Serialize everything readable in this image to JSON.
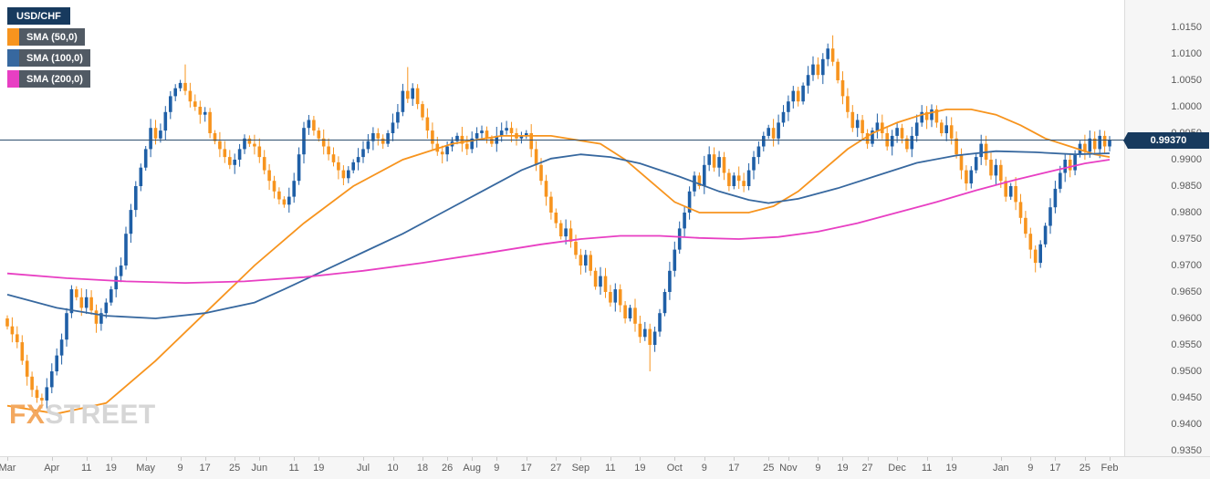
{
  "legend": {
    "symbol": "USD/CHF",
    "sma50_label": "SMA (50,0)",
    "sma100_label": "SMA (100,0)",
    "sma200_label": "SMA (200,0)"
  },
  "watermark": {
    "fx": "FX",
    "street": "STREET"
  },
  "price_tag": "0.99370",
  "colors": {
    "bull": "#1f5fa6",
    "bear": "#f7941e",
    "sma50": "#f7941e",
    "sma100": "#37689f",
    "sma200": "#e83fc3",
    "price_line": "#2e4f6f",
    "tag_bg": "#173a5e",
    "axis_text": "#5a5a5a"
  },
  "chart_data": {
    "type": "candlestick",
    "symbol": "USD/CHF",
    "timeframe": "daily",
    "legend_entries": [
      "USD/CHF",
      "SMA (50,0)",
      "SMA (100,0)",
      "SMA (200,0)"
    ],
    "grid": false,
    "legend_position": "top-left",
    "y_axis_side": "right",
    "ylim": [
      0.935,
      1.015
    ],
    "y_ticks": [
      1.015,
      1.01,
      1.005,
      1.0,
      0.995,
      0.99,
      0.985,
      0.98,
      0.975,
      0.97,
      0.965,
      0.96,
      0.955,
      0.95,
      0.945,
      0.94,
      0.935
    ],
    "current_price": 0.9937,
    "open_first": 0.96,
    "wick_default": 0.0013,
    "wick_overrides": {
      "7": [
        0.0008,
        0.0015
      ],
      "36": [
        0.0035,
        0.0008
      ],
      "81": [
        0.0045,
        0.0008
      ],
      "130": [
        0.001,
        0.005
      ],
      "167": [
        0.0025,
        0.0008
      ],
      "208": [
        0.0008,
        0.0018
      ]
    },
    "closes": [
      0.9585,
      0.957,
      0.9555,
      0.952,
      0.949,
      0.9465,
      0.945,
      0.9445,
      0.947,
      0.95,
      0.953,
      0.956,
      0.961,
      0.9655,
      0.964,
      0.962,
      0.964,
      0.9615,
      0.959,
      0.961,
      0.963,
      0.9655,
      0.968,
      0.97,
      0.976,
      0.9805,
      0.985,
      0.9885,
      0.992,
      0.996,
      0.994,
      0.9955,
      0.999,
      1.002,
      1.0035,
      1.0045,
      1.003,
      1.001,
      1.0,
      0.9985,
      0.999,
      0.995,
      0.9935,
      0.992,
      0.9905,
      0.989,
      0.99,
      0.992,
      0.994,
      0.993,
      0.9925,
      0.9905,
      0.988,
      0.986,
      0.984,
      0.9825,
      0.9815,
      0.983,
      0.986,
      0.991,
      0.996,
      0.9975,
      0.9955,
      0.994,
      0.9925,
      0.991,
      0.9895,
      0.988,
      0.9865,
      0.988,
      0.9895,
      0.9905,
      0.992,
      0.9935,
      0.995,
      0.994,
      0.993,
      0.995,
      0.997,
      0.999,
      1.003,
      1.0015,
      1.0035,
      1.0005,
      0.998,
      0.9955,
      0.993,
      0.9915,
      0.991,
      0.9925,
      0.9935,
      0.9945,
      0.993,
      0.992,
      0.994,
      0.995,
      0.9955,
      0.994,
      0.993,
      0.9945,
      0.9955,
      0.996,
      0.995,
      0.994,
      0.9945,
      0.995,
      0.992,
      0.989,
      0.986,
      0.983,
      0.98,
      0.978,
      0.9755,
      0.977,
      0.9745,
      0.972,
      0.97,
      0.972,
      0.969,
      0.966,
      0.968,
      0.965,
      0.963,
      0.9655,
      0.9625,
      0.96,
      0.962,
      0.959,
      0.9565,
      0.958,
      0.955,
      0.9575,
      0.961,
      0.965,
      0.969,
      0.973,
      0.977,
      0.98,
      0.984,
      0.987,
      0.985,
      0.989,
      0.991,
      0.9885,
      0.9905,
      0.9875,
      0.985,
      0.987,
      0.986,
      0.985,
      0.988,
      0.9905,
      0.9925,
      0.9945,
      0.996,
      0.994,
      0.997,
      0.999,
      1.001,
      1.003,
      1.001,
      1.004,
      1.006,
      1.008,
      1.006,
      1.009,
      1.011,
      1.0085,
      1.005,
      1.002,
      0.999,
      0.996,
      0.9975,
      0.995,
      0.993,
      0.9955,
      0.997,
      0.995,
      0.9925,
      0.9945,
      0.996,
      0.994,
      0.992,
      0.9945,
      0.997,
      0.999,
      0.9975,
      0.9995,
      0.997,
      0.995,
      0.9965,
      0.994,
      0.991,
      0.988,
      0.9855,
      0.988,
      0.9905,
      0.993,
      0.99,
      0.987,
      0.989,
      0.986,
      0.983,
      0.985,
      0.982,
      0.979,
      0.976,
      0.973,
      0.9705,
      0.974,
      0.9775,
      0.981,
      0.9845,
      0.9875,
      0.99,
      0.988,
      0.991,
      0.993,
      0.9915,
      0.994,
      0.992,
      0.9945,
      0.9925,
      0.9937
    ],
    "x_labels": [
      [
        0,
        "Mar"
      ],
      [
        9,
        "Apr"
      ],
      [
        16,
        "11"
      ],
      [
        21,
        "19"
      ],
      [
        28,
        "May"
      ],
      [
        35,
        "9"
      ],
      [
        40,
        "17"
      ],
      [
        46,
        "25"
      ],
      [
        51,
        "Jun"
      ],
      [
        58,
        "11"
      ],
      [
        63,
        "19"
      ],
      [
        72,
        "Jul"
      ],
      [
        78,
        "10"
      ],
      [
        84,
        "18"
      ],
      [
        89,
        "26"
      ],
      [
        94,
        "Aug"
      ],
      [
        99,
        "9"
      ],
      [
        105,
        "17"
      ],
      [
        111,
        "27"
      ],
      [
        116,
        "Sep"
      ],
      [
        122,
        "11"
      ],
      [
        128,
        "19"
      ],
      [
        135,
        "Oct"
      ],
      [
        141,
        "9"
      ],
      [
        147,
        "17"
      ],
      [
        154,
        "25"
      ],
      [
        158,
        "Nov"
      ],
      [
        164,
        "9"
      ],
      [
        169,
        "19"
      ],
      [
        174,
        "27"
      ],
      [
        180,
        "Dec"
      ],
      [
        186,
        "11"
      ],
      [
        191,
        "19"
      ],
      [
        201,
        "Jan"
      ],
      [
        207,
        "9"
      ],
      [
        212,
        "17"
      ],
      [
        218,
        "25"
      ],
      [
        223,
        "Feb"
      ]
    ],
    "series": [
      {
        "name": "SMA (50,0)",
        "color": "#f7941e",
        "points": [
          [
            0,
            0.9435
          ],
          [
            10,
            0.942
          ],
          [
            20,
            0.944
          ],
          [
            30,
            0.952
          ],
          [
            40,
            0.961
          ],
          [
            50,
            0.97
          ],
          [
            60,
            0.978
          ],
          [
            70,
            0.985
          ],
          [
            80,
            0.99
          ],
          [
            90,
            0.993
          ],
          [
            100,
            0.9945
          ],
          [
            110,
            0.9945
          ],
          [
            120,
            0.993
          ],
          [
            125,
            0.99
          ],
          [
            130,
            0.986
          ],
          [
            135,
            0.982
          ],
          [
            140,
            0.98
          ],
          [
            150,
            0.98
          ],
          [
            155,
            0.9812
          ],
          [
            160,
            0.984
          ],
          [
            165,
            0.988
          ],
          [
            170,
            0.992
          ],
          [
            175,
            0.995
          ],
          [
            180,
            0.997
          ],
          [
            185,
            0.9985
          ],
          [
            190,
            0.9995
          ],
          [
            195,
            0.9995
          ],
          [
            200,
            0.9985
          ],
          [
            205,
            0.9965
          ],
          [
            210,
            0.994
          ],
          [
            215,
            0.9925
          ],
          [
            220,
            0.991
          ],
          [
            223,
            0.9905
          ]
        ]
      },
      {
        "name": "SMA (100,0)",
        "color": "#37689f",
        "points": [
          [
            0,
            0.9645
          ],
          [
            10,
            0.962
          ],
          [
            20,
            0.9605
          ],
          [
            30,
            0.96
          ],
          [
            40,
            0.961
          ],
          [
            50,
            0.963
          ],
          [
            56,
            0.9655
          ],
          [
            64,
            0.969
          ],
          [
            72,
            0.9725
          ],
          [
            80,
            0.976
          ],
          [
            88,
            0.98
          ],
          [
            96,
            0.984
          ],
          [
            104,
            0.988
          ],
          [
            110,
            0.9902
          ],
          [
            116,
            0.991
          ],
          [
            122,
            0.9905
          ],
          [
            128,
            0.9893
          ],
          [
            136,
            0.9868
          ],
          [
            144,
            0.984
          ],
          [
            150,
            0.9824
          ],
          [
            154,
            0.9818
          ],
          [
            160,
            0.9826
          ],
          [
            168,
            0.9846
          ],
          [
            176,
            0.987
          ],
          [
            184,
            0.9894
          ],
          [
            192,
            0.9908
          ],
          [
            200,
            0.9916
          ],
          [
            208,
            0.9914
          ],
          [
            216,
            0.991
          ],
          [
            223,
            0.9912
          ]
        ]
      },
      {
        "name": "SMA (200,0)",
        "color": "#e83fc3",
        "points": [
          [
            0,
            0.9685
          ],
          [
            12,
            0.9676
          ],
          [
            24,
            0.967
          ],
          [
            36,
            0.9667
          ],
          [
            48,
            0.967
          ],
          [
            60,
            0.9678
          ],
          [
            72,
            0.969
          ],
          [
            84,
            0.9705
          ],
          [
            96,
            0.9722
          ],
          [
            108,
            0.974
          ],
          [
            116,
            0.975
          ],
          [
            124,
            0.9756
          ],
          [
            132,
            0.9756
          ],
          [
            140,
            0.9752
          ],
          [
            148,
            0.975
          ],
          [
            156,
            0.9754
          ],
          [
            164,
            0.9764
          ],
          [
            172,
            0.978
          ],
          [
            180,
            0.98
          ],
          [
            188,
            0.982
          ],
          [
            196,
            0.9842
          ],
          [
            204,
            0.9862
          ],
          [
            212,
            0.988
          ],
          [
            218,
            0.9893
          ],
          [
            223,
            0.99
          ]
        ]
      }
    ]
  }
}
